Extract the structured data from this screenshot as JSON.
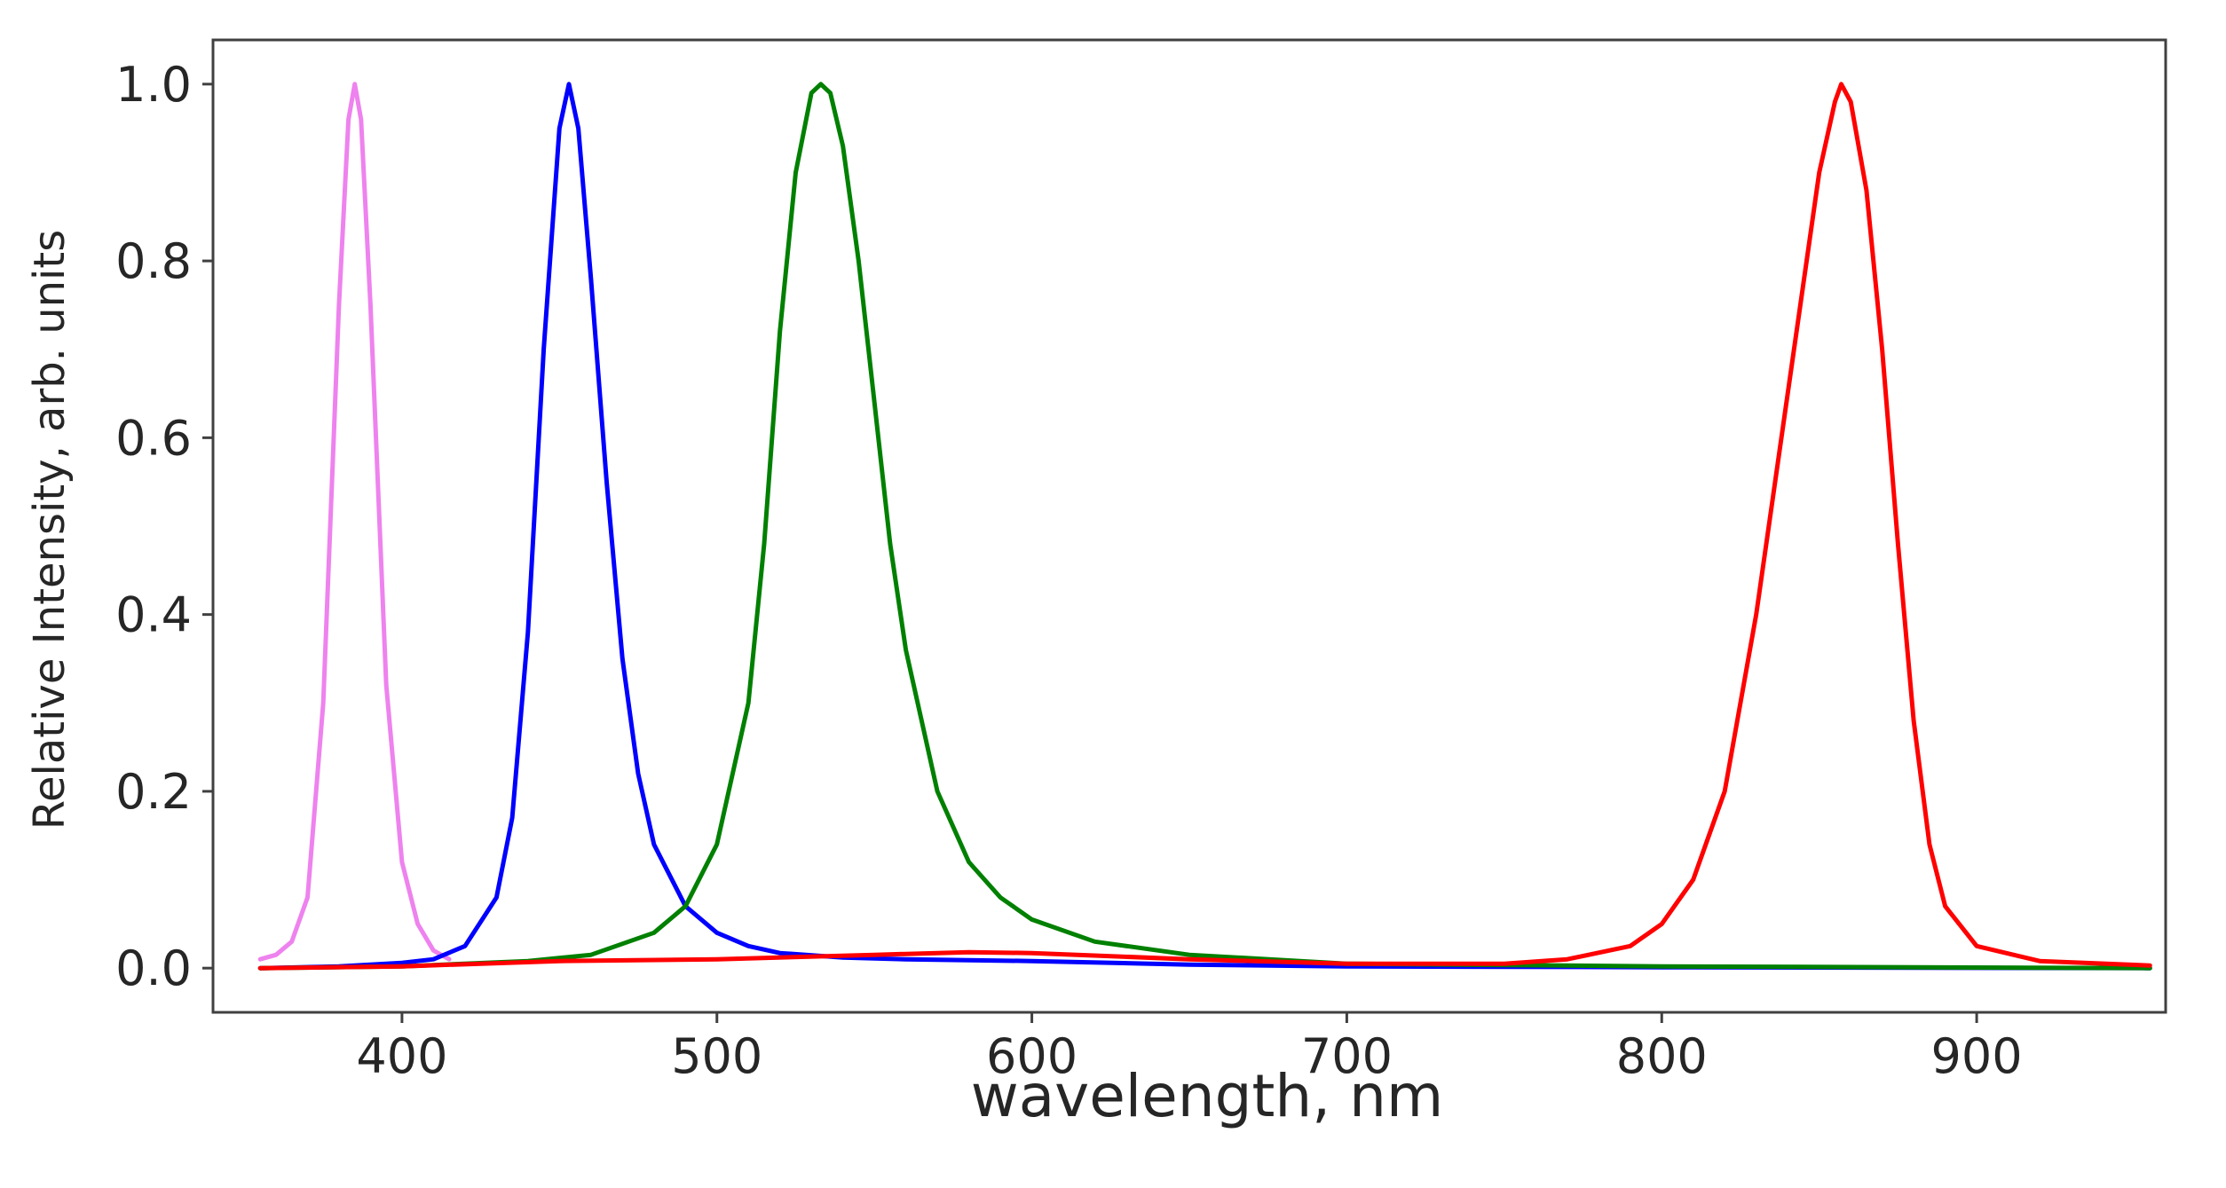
{
  "chart_data": {
    "type": "line",
    "title": "",
    "xlabel": "wavelength, nm",
    "ylabel": "Relative Intensity, arb. units",
    "xlim": [
      340,
      960
    ],
    "ylim": [
      -0.05,
      1.05
    ],
    "xticks": [
      400,
      500,
      600,
      700,
      800,
      900
    ],
    "xtick_labels": [
      "400",
      "500",
      "600",
      "700",
      "800",
      "900"
    ],
    "yticks": [
      0.0,
      0.2,
      0.4,
      0.6,
      0.8,
      1.0
    ],
    "ytick_labels": [
      "0.0",
      "0.2",
      "0.4",
      "0.6",
      "0.8",
      "1.0"
    ],
    "grid": false,
    "legend": "none",
    "series": [
      {
        "color": "#ee82ee",
        "x": [
          355,
          360,
          365,
          370,
          375,
          380,
          383,
          385,
          387,
          390,
          395,
          400,
          405,
          410,
          415
        ],
        "y": [
          0.01,
          0.015,
          0.03,
          0.08,
          0.3,
          0.75,
          0.96,
          1.0,
          0.96,
          0.75,
          0.32,
          0.12,
          0.05,
          0.02,
          0.01
        ]
      },
      {
        "color": "#0000ff",
        "x": [
          355,
          380,
          400,
          410,
          420,
          430,
          435,
          440,
          445,
          450,
          453,
          456,
          460,
          465,
          470,
          475,
          480,
          490,
          500,
          510,
          520,
          540,
          560,
          600,
          650,
          700,
          800,
          955
        ],
        "y": [
          0.0,
          0.002,
          0.006,
          0.01,
          0.025,
          0.08,
          0.17,
          0.38,
          0.7,
          0.95,
          1.0,
          0.95,
          0.78,
          0.55,
          0.35,
          0.22,
          0.14,
          0.07,
          0.04,
          0.025,
          0.017,
          0.012,
          0.01,
          0.008,
          0.004,
          0.002,
          0.001,
          0.0
        ]
      },
      {
        "color": "#008000",
        "x": [
          355,
          400,
          440,
          460,
          480,
          490,
          500,
          510,
          515,
          520,
          525,
          530,
          533,
          536,
          540,
          545,
          550,
          555,
          560,
          570,
          580,
          590,
          600,
          620,
          650,
          700,
          800,
          955
        ],
        "y": [
          0.0,
          0.002,
          0.008,
          0.015,
          0.04,
          0.07,
          0.14,
          0.3,
          0.48,
          0.72,
          0.9,
          0.99,
          1.0,
          0.99,
          0.93,
          0.8,
          0.64,
          0.48,
          0.36,
          0.2,
          0.12,
          0.08,
          0.055,
          0.03,
          0.015,
          0.005,
          0.002,
          0.0
        ]
      },
      {
        "color": "#ff0000",
        "x": [
          355,
          400,
          450,
          500,
          550,
          580,
          600,
          650,
          700,
          750,
          770,
          790,
          800,
          810,
          820,
          830,
          840,
          850,
          855,
          857,
          860,
          865,
          870,
          875,
          880,
          885,
          890,
          900,
          920,
          955
        ],
        "y": [
          0.0,
          0.002,
          0.008,
          0.01,
          0.015,
          0.018,
          0.017,
          0.01,
          0.005,
          0.005,
          0.01,
          0.025,
          0.05,
          0.1,
          0.2,
          0.4,
          0.65,
          0.9,
          0.98,
          1.0,
          0.98,
          0.88,
          0.7,
          0.48,
          0.28,
          0.14,
          0.07,
          0.025,
          0.008,
          0.003
        ]
      }
    ]
  }
}
